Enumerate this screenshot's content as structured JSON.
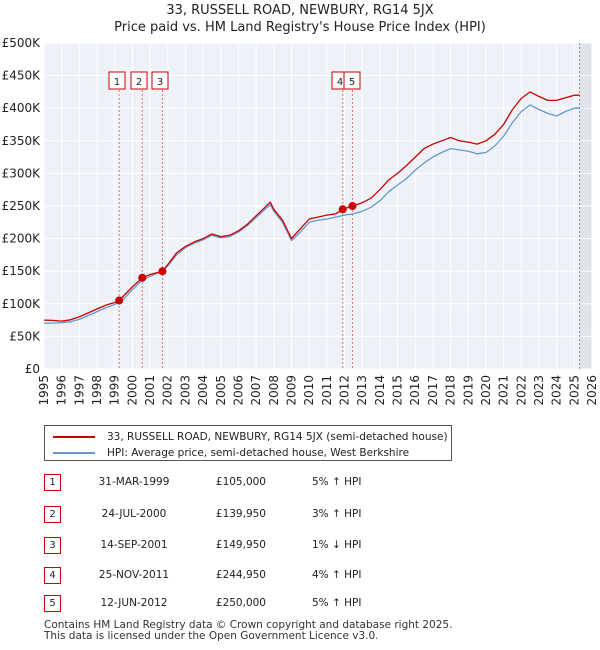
{
  "chart_data": {
    "type": "line",
    "title": "33, RUSSELL ROAD, NEWBURY, RG14 5JX",
    "subtitle": "Price paid vs. HM Land Registry's House Price Index (HPI)",
    "xlim": [
      1995,
      2026
    ],
    "ylim": [
      0,
      500000
    ],
    "x_ticks": [
      "1995",
      "1996",
      "1997",
      "1998",
      "1999",
      "2000",
      "2001",
      "2002",
      "2003",
      "2004",
      "2005",
      "2006",
      "2007",
      "2008",
      "2009",
      "2010",
      "2011",
      "2012",
      "2013",
      "2014",
      "2015",
      "2016",
      "2017",
      "2018",
      "2019",
      "2020",
      "2021",
      "2022",
      "2023",
      "2024",
      "2025",
      "2026"
    ],
    "y_ticks": [
      {
        "value": 0,
        "label": "£0"
      },
      {
        "value": 50000,
        "label": "£50K"
      },
      {
        "value": 100000,
        "label": "£100K"
      },
      {
        "value": 150000,
        "label": "£150K"
      },
      {
        "value": 200000,
        "label": "£200K"
      },
      {
        "value": 250000,
        "label": "£250K"
      },
      {
        "value": 300000,
        "label": "£300K"
      },
      {
        "value": 350000,
        "label": "£350K"
      },
      {
        "value": 400000,
        "label": "£400K"
      },
      {
        "value": 450000,
        "label": "£450K"
      },
      {
        "value": 500000,
        "label": "£500K"
      }
    ],
    "series": [
      {
        "name": "33, RUSSELL ROAD, NEWBURY, RG14 5JX (semi-detached house)",
        "color": "#cc0000",
        "points": [
          [
            1995,
            75000
          ],
          [
            1995.5,
            74500
          ],
          [
            1996,
            73500
          ],
          [
            1996.5,
            75500
          ],
          [
            1997,
            80000
          ],
          [
            1997.5,
            86000
          ],
          [
            1998,
            92000
          ],
          [
            1998.5,
            98000
          ],
          [
            1999,
            102000
          ],
          [
            1999.25,
            105000
          ],
          [
            1999.5,
            112000
          ],
          [
            2000,
            126000
          ],
          [
            2000.56,
            139950
          ],
          [
            2001,
            145000
          ],
          [
            2001.7,
            149950
          ],
          [
            2002,
            160000
          ],
          [
            2002.5,
            178000
          ],
          [
            2003,
            188000
          ],
          [
            2003.5,
            195000
          ],
          [
            2004,
            200000
          ],
          [
            2004.5,
            207000
          ],
          [
            2005,
            203000
          ],
          [
            2005.5,
            205000
          ],
          [
            2006,
            212000
          ],
          [
            2006.5,
            222000
          ],
          [
            2007,
            235000
          ],
          [
            2007.5,
            248000
          ],
          [
            2007.8,
            256000
          ],
          [
            2008,
            245000
          ],
          [
            2008.5,
            228000
          ],
          [
            2009,
            200000
          ],
          [
            2009.5,
            215000
          ],
          [
            2010,
            230000
          ],
          [
            2010.5,
            233000
          ],
          [
            2011,
            236000
          ],
          [
            2011.5,
            238000
          ],
          [
            2011.9,
            244950
          ],
          [
            2012.45,
            250000
          ],
          [
            2013,
            255000
          ],
          [
            2013.5,
            262000
          ],
          [
            2014,
            275000
          ],
          [
            2014.5,
            290000
          ],
          [
            2015,
            300000
          ],
          [
            2015.5,
            312000
          ],
          [
            2016,
            325000
          ],
          [
            2016.5,
            338000
          ],
          [
            2017,
            345000
          ],
          [
            2017.5,
            350000
          ],
          [
            2018,
            355000
          ],
          [
            2018.5,
            350000
          ],
          [
            2019,
            348000
          ],
          [
            2019.5,
            345000
          ],
          [
            2020,
            350000
          ],
          [
            2020.5,
            360000
          ],
          [
            2021,
            375000
          ],
          [
            2021.5,
            398000
          ],
          [
            2022,
            415000
          ],
          [
            2022.5,
            425000
          ],
          [
            2023,
            418000
          ],
          [
            2023.5,
            412000
          ],
          [
            2024,
            412000
          ],
          [
            2024.5,
            416000
          ],
          [
            2025,
            420000
          ],
          [
            2025.3,
            420000
          ]
        ]
      },
      {
        "name": "HPI: Average price, semi-detached house, West Berkshire",
        "color": "#6699cc",
        "points": [
          [
            1995,
            70000
          ],
          [
            1995.5,
            70500
          ],
          [
            1996,
            71000
          ],
          [
            1996.5,
            72500
          ],
          [
            1997,
            76000
          ],
          [
            1997.5,
            82000
          ],
          [
            1998,
            88000
          ],
          [
            1998.5,
            94000
          ],
          [
            1999,
            99000
          ],
          [
            1999.5,
            107000
          ],
          [
            2000,
            122000
          ],
          [
            2000.5,
            135000
          ],
          [
            2001,
            142000
          ],
          [
            2001.5,
            148000
          ],
          [
            2002,
            158000
          ],
          [
            2002.5,
            175000
          ],
          [
            2003,
            186000
          ],
          [
            2003.5,
            193000
          ],
          [
            2004,
            198000
          ],
          [
            2004.5,
            205000
          ],
          [
            2005,
            201000
          ],
          [
            2005.5,
            203000
          ],
          [
            2006,
            210000
          ],
          [
            2006.5,
            220000
          ],
          [
            2007,
            232000
          ],
          [
            2007.5,
            245000
          ],
          [
            2007.8,
            252000
          ],
          [
            2008,
            242000
          ],
          [
            2008.5,
            225000
          ],
          [
            2009,
            197000
          ],
          [
            2009.5,
            210000
          ],
          [
            2010,
            225000
          ],
          [
            2010.5,
            228000
          ],
          [
            2011,
            230000
          ],
          [
            2011.5,
            233000
          ],
          [
            2012,
            236000
          ],
          [
            2012.5,
            238000
          ],
          [
            2013,
            242000
          ],
          [
            2013.5,
            248000
          ],
          [
            2014,
            258000
          ],
          [
            2014.5,
            272000
          ],
          [
            2015,
            282000
          ],
          [
            2015.5,
            292000
          ],
          [
            2016,
            305000
          ],
          [
            2016.5,
            316000
          ],
          [
            2017,
            325000
          ],
          [
            2017.5,
            332000
          ],
          [
            2018,
            338000
          ],
          [
            2018.5,
            336000
          ],
          [
            2019,
            334000
          ],
          [
            2019.5,
            330000
          ],
          [
            2020,
            332000
          ],
          [
            2020.5,
            342000
          ],
          [
            2021,
            357000
          ],
          [
            2021.5,
            378000
          ],
          [
            2022,
            395000
          ],
          [
            2022.5,
            405000
          ],
          [
            2023,
            398000
          ],
          [
            2023.5,
            392000
          ],
          [
            2024,
            388000
          ],
          [
            2024.5,
            395000
          ],
          [
            2025,
            400000
          ],
          [
            2025.3,
            400000
          ]
        ]
      }
    ],
    "transactions": [
      {
        "label": "1",
        "x": 1999.25,
        "value": 105000,
        "date": "31-MAR-1999",
        "price": "£105,000",
        "hpi": "5% ↑ HPI"
      },
      {
        "label": "2",
        "x": 2000.56,
        "value": 139950,
        "date": "24-JUL-2000",
        "price": "£139,950",
        "hpi": "3% ↑ HPI"
      },
      {
        "label": "3",
        "x": 2001.7,
        "value": 149950,
        "date": "14-SEP-2001",
        "price": "£149,950",
        "hpi": "1% ↓ HPI"
      },
      {
        "label": "4",
        "x": 2011.9,
        "value": 244950,
        "date": "25-NOV-2011",
        "price": "£244,950",
        "hpi": "4% ↑ HPI"
      },
      {
        "label": "5",
        "x": 2012.45,
        "value": 250000,
        "date": "12-JUN-2012",
        "price": "£250,000",
        "hpi": "5% ↑ HPI"
      }
    ],
    "forecast_start": 2025.3
  },
  "legend": {
    "property_label": "33, RUSSELL ROAD, NEWBURY, RG14 5JX (semi-detached house)",
    "hpi_label": "HPI: Average price, semi-detached house, West Berkshire",
    "property_color": "#cc0000",
    "hpi_color": "#6699cc"
  },
  "footer": {
    "line1": "Contains HM Land Registry data © Crown copyright and database right 2025.",
    "line2": "This data is licensed under the Open Government Licence v3.0."
  }
}
